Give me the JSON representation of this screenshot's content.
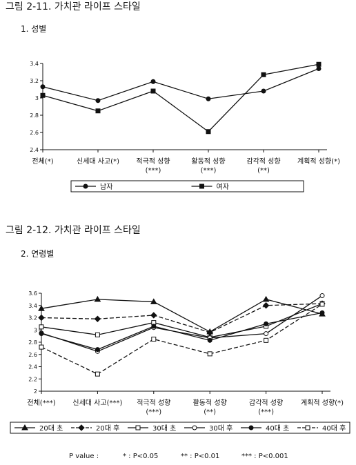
{
  "chart_data": [
    {
      "type": "line",
      "title": "그림 2-11. 가치관 라이프 스타일",
      "subtitle": "1. 성별",
      "categories": [
        "전체(*)",
        "신세대 사고(*)",
        "적극적 성향\n(***)",
        "활동적 성향\n(***)",
        "감각적 성향\n(**)",
        "계획적 성향(*)"
      ],
      "ylim": [
        2.4,
        3.4
      ],
      "yticks": [
        2.4,
        2.6,
        2.8,
        3,
        3.2,
        3.4
      ],
      "legend": "bottom",
      "series": [
        {
          "name": "남자",
          "color": "#111111",
          "marker": "circle",
          "fill": "filled",
          "dash": "solid",
          "values": [
            3.13,
            2.97,
            3.19,
            2.99,
            3.08,
            3.34
          ]
        },
        {
          "name": "여자",
          "color": "#111111",
          "marker": "square",
          "fill": "filled",
          "dash": "solid",
          "values": [
            3.03,
            2.85,
            3.08,
            2.61,
            3.27,
            3.39
          ]
        }
      ]
    },
    {
      "type": "line",
      "title": "그림 2-12. 가치관 라이프 스타일",
      "subtitle": "2. 연령별",
      "categories": [
        "전체(***)",
        "신세대 사고(***)",
        "적극적 성향\n(***)",
        "활동적 성향\n(**)",
        "감각적 성향\n(***)",
        "계획적 성향(*)"
      ],
      "ylim": [
        2,
        3.6
      ],
      "yticks": [
        2,
        2.2,
        2.4,
        2.6,
        2.8,
        3,
        3.2,
        3.4,
        3.6
      ],
      "legend": "bottom",
      "series": [
        {
          "name": "20대 초",
          "color": "#111111",
          "marker": "triangle",
          "fill": "filled",
          "dash": "solid",
          "values": [
            3.35,
            3.5,
            3.46,
            2.97,
            3.5,
            3.26
          ]
        },
        {
          "name": "20대 후",
          "color": "#111111",
          "marker": "diamond",
          "fill": "filled",
          "dash": "dashed",
          "values": [
            3.2,
            3.18,
            3.24,
            2.96,
            3.4,
            3.43
          ]
        },
        {
          "name": "30대 초",
          "color": "#111111",
          "marker": "square",
          "fill": "open",
          "dash": "solid",
          "values": [
            3.05,
            2.92,
            3.12,
            2.88,
            3.06,
            3.43
          ]
        },
        {
          "name": "30대 후",
          "color": "#111111",
          "marker": "circle",
          "fill": "open",
          "dash": "solid",
          "values": [
            2.95,
            2.65,
            3.04,
            2.87,
            2.94,
            3.56
          ]
        },
        {
          "name": "40대 초",
          "color": "#111111",
          "marker": "circle",
          "fill": "filled",
          "dash": "solid",
          "values": [
            2.94,
            2.68,
            3.06,
            2.83,
            3.1,
            3.28
          ]
        },
        {
          "name": "40대 후",
          "color": "#111111",
          "marker": "square",
          "fill": "open",
          "dash": "dashed",
          "values": [
            2.72,
            2.28,
            2.85,
            2.61,
            2.83,
            3.42
          ]
        }
      ]
    }
  ],
  "footnote": {
    "label": "P value :",
    "items": [
      "* : P<0.05",
      "** : P<0.01",
      "*** : P<0.001"
    ]
  }
}
